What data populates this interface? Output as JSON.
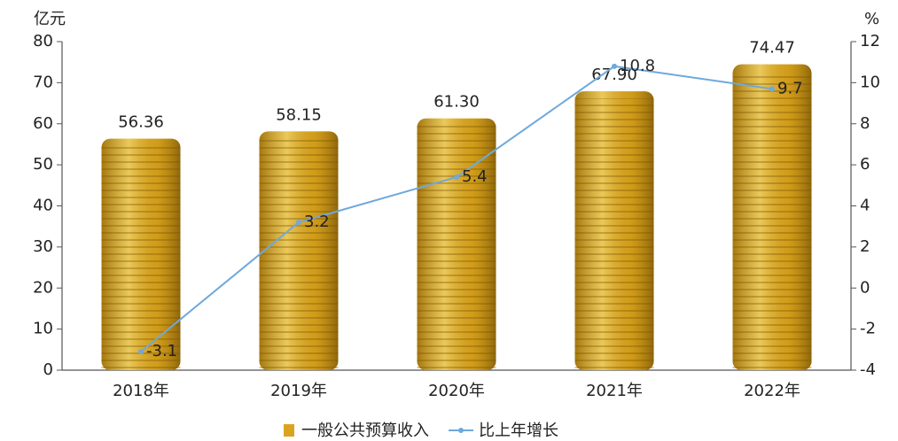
{
  "chart_data": {
    "type": "bar",
    "categories": [
      "2018年",
      "2019年",
      "2020年",
      "2021年",
      "2022年"
    ],
    "series": [
      {
        "name": "一般公共预算收入",
        "color": "#d9a520",
        "values": [
          56.36,
          58.15,
          61.3,
          67.9,
          74.47
        ],
        "value_labels": [
          "56.36",
          "58.15",
          "61.30",
          "67.90",
          "74.47"
        ]
      },
      {
        "name": "比上年增长",
        "type": "line",
        "axis": "y2",
        "color": "#6fa8dc",
        "values": [
          -3.1,
          3.2,
          5.4,
          10.8,
          9.7
        ]
      }
    ],
    "ylabel": "亿元",
    "y2label": "%",
    "ylim": [
      0,
      80
    ],
    "yticks": [
      0,
      10,
      20,
      30,
      40,
      50,
      60,
      70,
      80
    ],
    "y2lim": [
      -4,
      12
    ],
    "y2ticks": [
      -4,
      -2,
      0,
      2,
      4,
      6,
      8,
      10,
      12
    ]
  }
}
